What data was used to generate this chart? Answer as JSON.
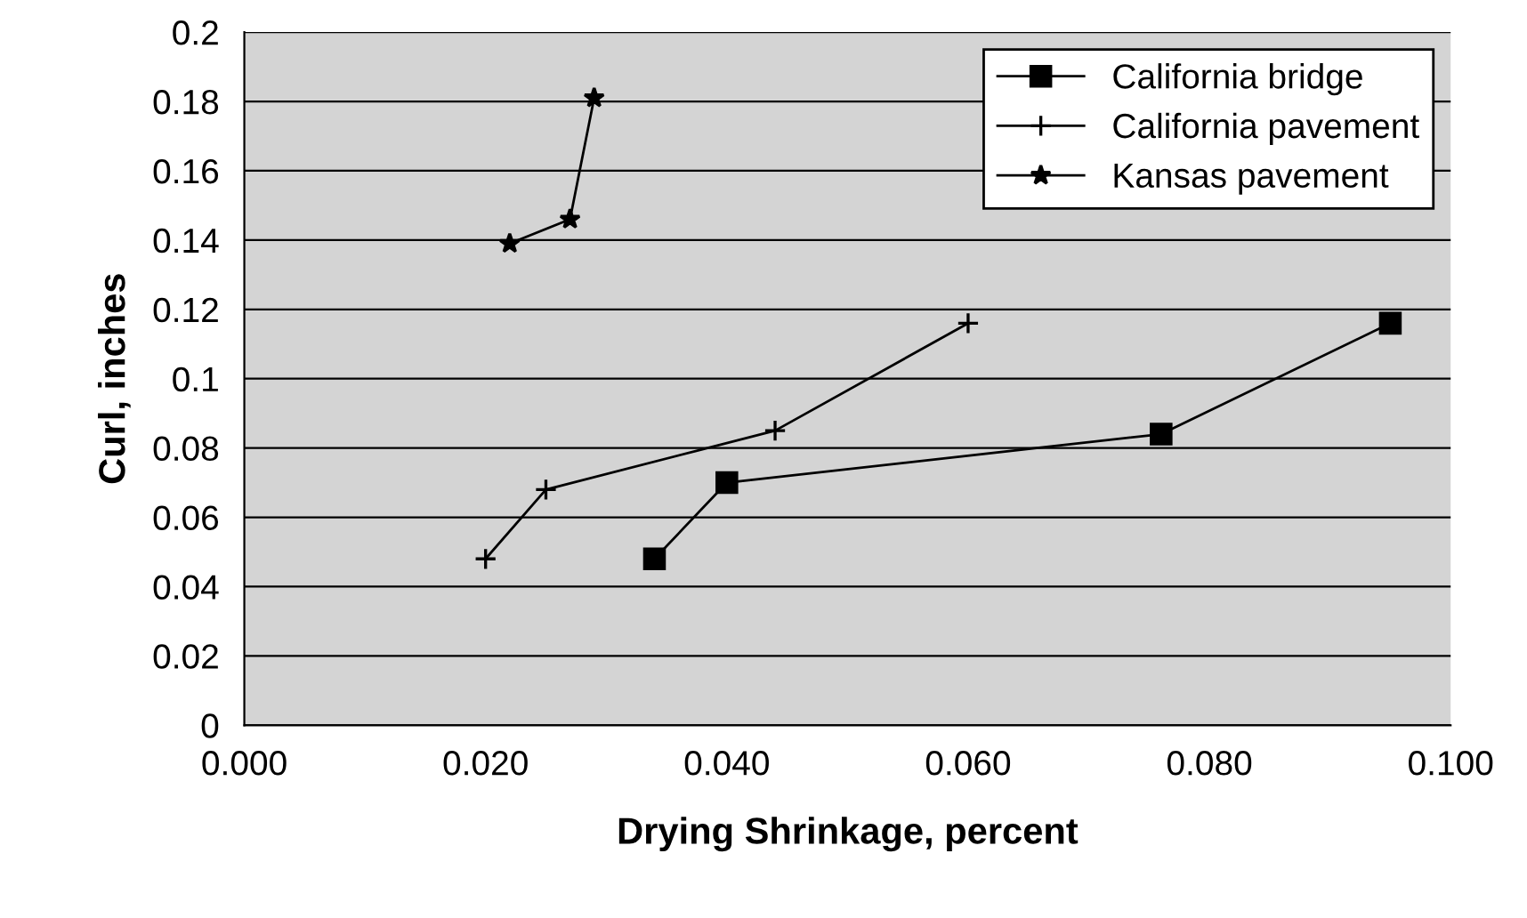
{
  "chart_data": {
    "type": "line",
    "xlabel": "Drying Shrinkage, percent",
    "ylabel": "Curl, inches",
    "xlim": [
      0,
      0.1
    ],
    "xticks": [
      {
        "value": 0,
        "label": "0.000"
      },
      {
        "value": 0.02,
        "label": "0.020"
      },
      {
        "value": 0.04,
        "label": "0.040"
      },
      {
        "value": 0.06,
        "label": "0.060"
      },
      {
        "value": 0.08,
        "label": "0.080"
      },
      {
        "value": 0.1,
        "label": "0.100"
      }
    ],
    "ylim": [
      0,
      0.2
    ],
    "yticks": [
      0,
      0.02,
      0.04,
      0.06,
      0.08,
      0.1,
      0.12,
      0.14,
      0.16,
      0.18,
      0.2
    ],
    "grid": "y",
    "legend": "top right",
    "line_style": "solid",
    "series": [
      {
        "name": "California bridge",
        "color": "#000000",
        "marker": "square",
        "x": [
          0.034,
          0.04,
          0.076,
          0.095
        ],
        "values": [
          0.048,
          0.07,
          0.084,
          0.116
        ]
      },
      {
        "name": "California pavement",
        "color": "#000000",
        "marker": "cross",
        "x": [
          0.02,
          0.025,
          0.044,
          0.06
        ],
        "values": [
          0.048,
          0.068,
          0.085,
          0.116
        ]
      },
      {
        "name": "Kansas pavement",
        "color": "#000000",
        "marker": "star",
        "x": [
          0.022,
          0.027,
          0.029
        ],
        "values": [
          0.139,
          0.146,
          0.181
        ]
      }
    ]
  }
}
